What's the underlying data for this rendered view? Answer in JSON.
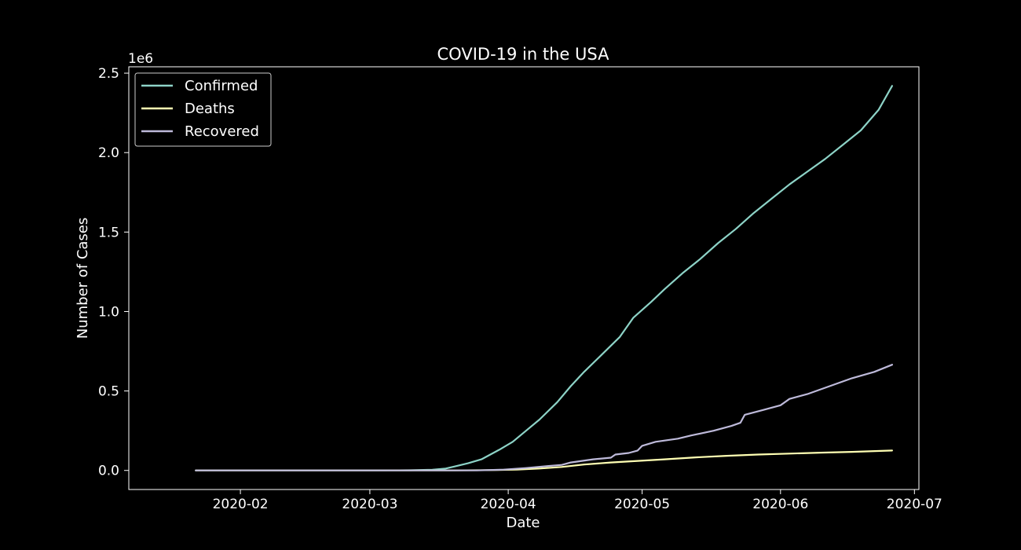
{
  "chart_data": {
    "type": "line",
    "title": "COVID-19 in the USA",
    "xlabel": "Date",
    "ylabel": "Number of Cases",
    "y_offset_text": "1e6",
    "xlim": [
      "2020-01-07",
      "2020-07-02"
    ],
    "ylim": [
      -0.12,
      2.54
    ],
    "x_ticks": [
      "2020-02",
      "2020-03",
      "2020-04",
      "2020-05",
      "2020-06",
      "2020-07"
    ],
    "y_ticks": [
      "0.0",
      "0.5",
      "1.0",
      "1.5",
      "2.0",
      "2.5"
    ],
    "legend_position": "top-left",
    "grid": false,
    "background": "#000000",
    "foreground": "#ffffff",
    "series": [
      {
        "name": "Confirmed",
        "color": "#8dd3c7",
        "points": [
          [
            "2020-01-22",
            0.0
          ],
          [
            "2020-03-01",
            0.0
          ],
          [
            "2020-03-10",
            0.001
          ],
          [
            "2020-03-15",
            0.004
          ],
          [
            "2020-03-18",
            0.012
          ],
          [
            "2020-03-20",
            0.025
          ],
          [
            "2020-03-23",
            0.045
          ],
          [
            "2020-03-26",
            0.07
          ],
          [
            "2020-03-30",
            0.13
          ],
          [
            "2020-04-02",
            0.18
          ],
          [
            "2020-04-05",
            0.25
          ],
          [
            "2020-04-08",
            0.32
          ],
          [
            "2020-04-12",
            0.43
          ],
          [
            "2020-04-15",
            0.53
          ],
          [
            "2020-04-18",
            0.62
          ],
          [
            "2020-04-22",
            0.73
          ],
          [
            "2020-04-26",
            0.84
          ],
          [
            "2020-04-29",
            0.96
          ],
          [
            "2020-05-03",
            1.06
          ],
          [
            "2020-05-06",
            1.14
          ],
          [
            "2020-05-10",
            1.24
          ],
          [
            "2020-05-14",
            1.33
          ],
          [
            "2020-05-18",
            1.43
          ],
          [
            "2020-05-22",
            1.52
          ],
          [
            "2020-05-26",
            1.62
          ],
          [
            "2020-05-30",
            1.71
          ],
          [
            "2020-06-03",
            1.8
          ],
          [
            "2020-06-07",
            1.88
          ],
          [
            "2020-06-11",
            1.96
          ],
          [
            "2020-06-15",
            2.05
          ],
          [
            "2020-06-19",
            2.14
          ],
          [
            "2020-06-23",
            2.27
          ],
          [
            "2020-06-26",
            2.42
          ]
        ]
      },
      {
        "name": "Deaths",
        "color": "#ffffb3",
        "points": [
          [
            "2020-01-22",
            0.0
          ],
          [
            "2020-03-20",
            0.0
          ],
          [
            "2020-03-28",
            0.002
          ],
          [
            "2020-04-03",
            0.005
          ],
          [
            "2020-04-08",
            0.012
          ],
          [
            "2020-04-13",
            0.022
          ],
          [
            "2020-04-18",
            0.037
          ],
          [
            "2020-04-24",
            0.05
          ],
          [
            "2020-04-30",
            0.06
          ],
          [
            "2020-05-06",
            0.07
          ],
          [
            "2020-05-13",
            0.082
          ],
          [
            "2020-05-20",
            0.092
          ],
          [
            "2020-05-27",
            0.1
          ],
          [
            "2020-06-03",
            0.106
          ],
          [
            "2020-06-10",
            0.112
          ],
          [
            "2020-06-17",
            0.117
          ],
          [
            "2020-06-26",
            0.125
          ]
        ]
      },
      {
        "name": "Recovered",
        "color": "#bebada",
        "points": [
          [
            "2020-01-22",
            0.0
          ],
          [
            "2020-03-25",
            0.0
          ],
          [
            "2020-03-31",
            0.005
          ],
          [
            "2020-04-05",
            0.015
          ],
          [
            "2020-04-10",
            0.028
          ],
          [
            "2020-04-13",
            0.035
          ],
          [
            "2020-04-15",
            0.05
          ],
          [
            "2020-04-20",
            0.07
          ],
          [
            "2020-04-24",
            0.08
          ],
          [
            "2020-04-25",
            0.1
          ],
          [
            "2020-04-28",
            0.11
          ],
          [
            "2020-04-30",
            0.125
          ],
          [
            "2020-05-01",
            0.155
          ],
          [
            "2020-05-04",
            0.18
          ],
          [
            "2020-05-09",
            0.2
          ],
          [
            "2020-05-12",
            0.22
          ],
          [
            "2020-05-17",
            0.25
          ],
          [
            "2020-05-21",
            0.28
          ],
          [
            "2020-05-23",
            0.3
          ],
          [
            "2020-05-24",
            0.35
          ],
          [
            "2020-05-28",
            0.38
          ],
          [
            "2020-06-01",
            0.41
          ],
          [
            "2020-06-03",
            0.45
          ],
          [
            "2020-06-07",
            0.48
          ],
          [
            "2020-06-12",
            0.53
          ],
          [
            "2020-06-17",
            0.58
          ],
          [
            "2020-06-22",
            0.62
          ],
          [
            "2020-06-26",
            0.665
          ]
        ]
      }
    ]
  }
}
